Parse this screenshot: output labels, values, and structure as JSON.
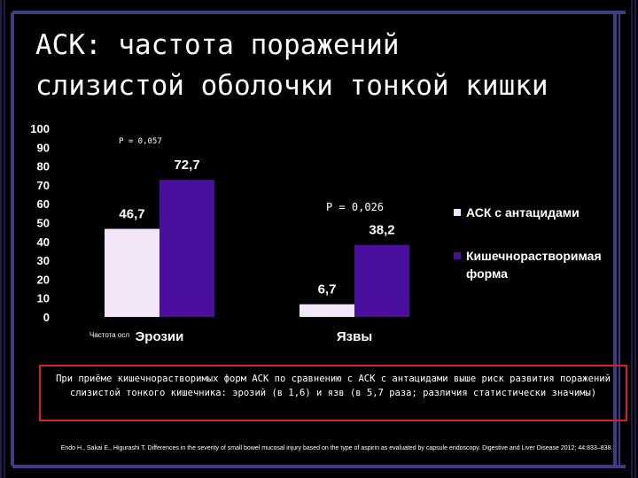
{
  "title": {
    "line1": "АСК: частота поражений",
    "line2": "слизистой оболочки тонкой кишки"
  },
  "chart_data": {
    "type": "bar",
    "categories": [
      "Эрозии",
      "Язвы"
    ],
    "series": [
      {
        "name": "АСК с антацидами",
        "values": [
          46.7,
          6.7
        ],
        "color": "#f1e6f7"
      },
      {
        "name": "Кишечнорастворимая форма",
        "values": [
          72.7,
          38.2
        ],
        "color": "#4a0f9c"
      }
    ],
    "data_labels": [
      [
        "46,7",
        "6,7"
      ],
      [
        "72,7",
        "38,2"
      ]
    ],
    "y_ticks": [
      "0",
      "10",
      "20",
      "30",
      "40",
      "50",
      "60",
      "70",
      "80",
      "90",
      "100"
    ],
    "ylim": [
      0,
      100
    ],
    "grid": false,
    "legend_position": "right",
    "annotations": [
      "P = 0,057",
      "P = 0,026"
    ]
  },
  "source_label": "Частота осл",
  "note": "При приёме кишечнорастворимых форм АСК по сравнению с АСК с антацидами выше риск развития поражений слизистой тонкого кишечника: эрозий (в 1,6) и язв (в 5,7 раза; различия статистически значимы)",
  "citation": "Endo H., Sakai E., Higurashi T. Differences in the severity of small bowel mucosal injury based on the type of aspirin as evaluated by capsule endoscopy. Digestive and Liver Disease 2012; 44:833–838.",
  "colors": {
    "frame": "#3d3d84",
    "note_border": "#d81f2a"
  }
}
